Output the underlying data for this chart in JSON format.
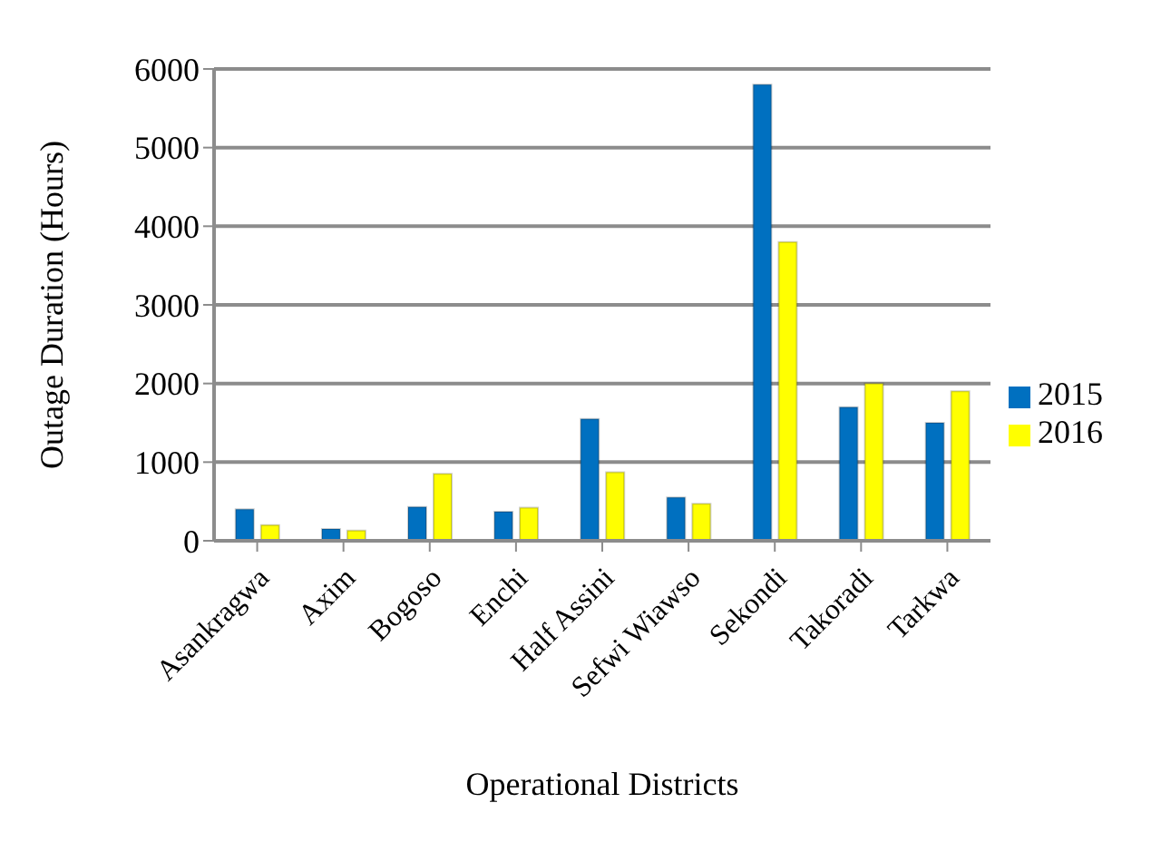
{
  "chart_data": {
    "type": "bar",
    "xlabel": "Operational Districts",
    "ylabel": "Outage Duration (Hours)",
    "categories": [
      "Asankragwa",
      "Axim",
      "Bogoso",
      "Enchi",
      "Half Assini",
      "Sefwi Wiawso",
      "Sekondi",
      "Takoradi",
      "Tarkwa"
    ],
    "series": [
      {
        "name": "2015",
        "color": "#0070c0",
        "values": [
          400,
          150,
          430,
          370,
          1550,
          550,
          5800,
          1700,
          1500
        ]
      },
      {
        "name": "2016",
        "color": "#ffff00",
        "values": [
          200,
          130,
          850,
          420,
          870,
          470,
          3800,
          2000,
          1900
        ]
      }
    ],
    "ylim": [
      0,
      6000
    ],
    "yticks": [
      0,
      1000,
      2000,
      3000,
      4000,
      5000,
      6000
    ],
    "grid": "y",
    "legend": "right"
  }
}
